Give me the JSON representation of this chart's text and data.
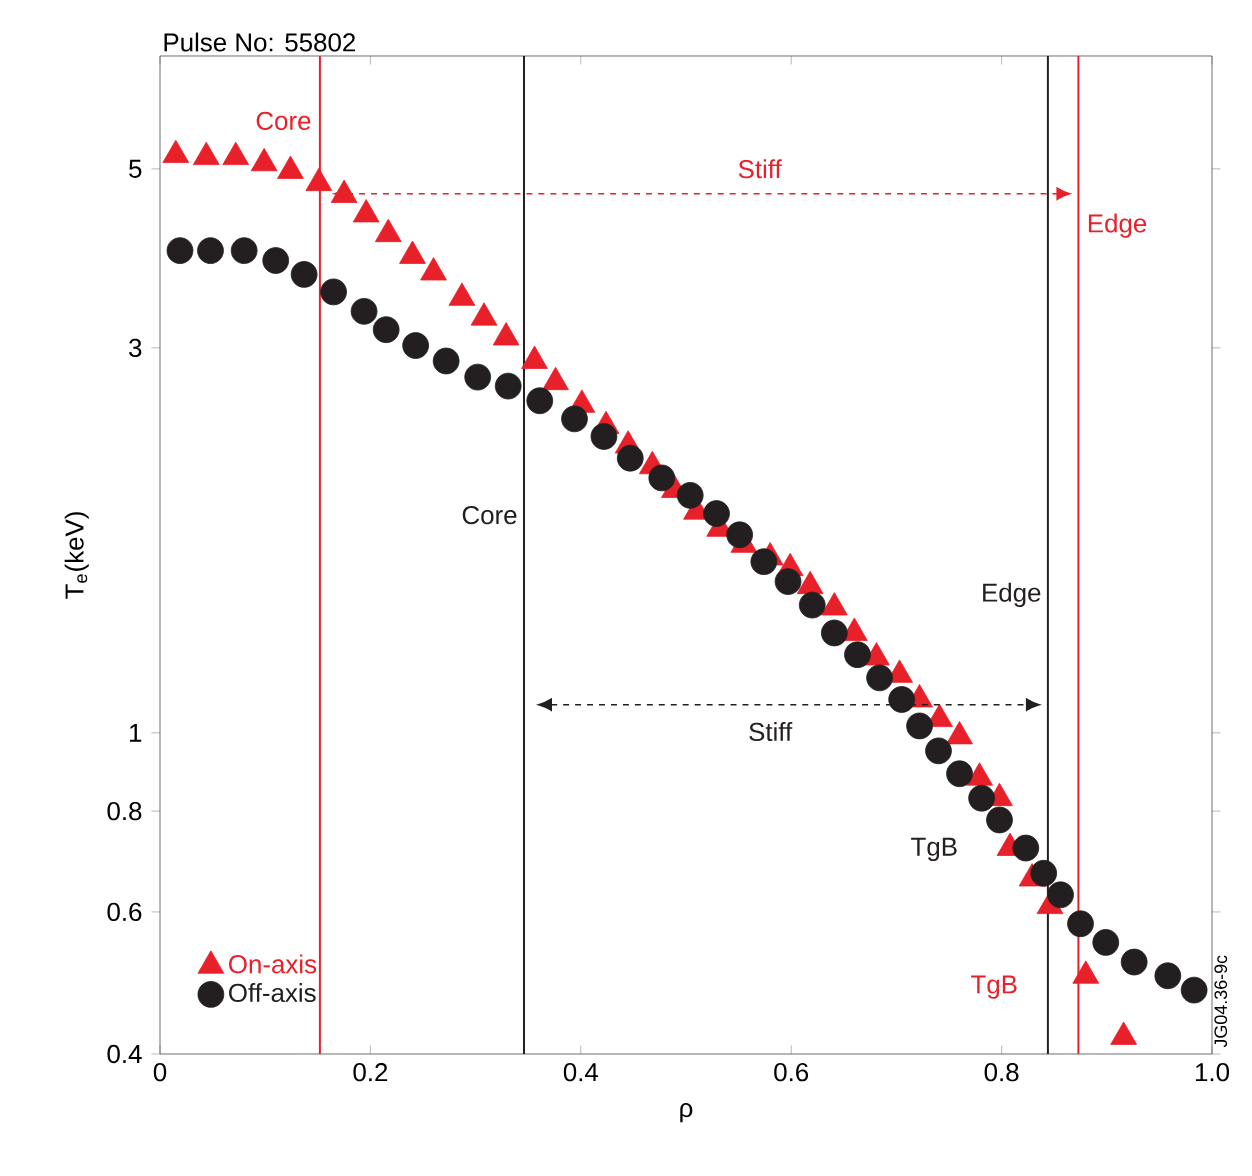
{
  "chart_data": {
    "type": "scatter",
    "title": "Pulse No: 55802",
    "xlabel": "ρ",
    "ylabel": "T$_{e}$(keV)",
    "log": "y",
    "legend": "bottom left",
    "grid": false,
    "xlim": [
      0,
      1
    ],
    "xticks": [
      0,
      0.2,
      0.4,
      0.6,
      0.8,
      {
        "value": 1,
        "label": "1.0"
      }
    ],
    "ylim": [
      0.4,
      6.9
    ],
    "yticks": [
      0.4,
      0.6,
      0.8,
      1,
      3,
      5
    ],
    "series": [
      {
        "name": "On-axis",
        "color": "#e8202a",
        "marker": "triangle",
        "x": [
          0.015,
          0.044,
          0.072,
          0.099,
          0.124,
          0.151,
          0.175,
          0.196,
          0.217,
          0.24,
          0.26,
          0.287,
          0.308,
          0.329,
          0.356,
          0.376,
          0.401,
          0.424,
          0.445,
          0.468,
          0.489,
          0.51,
          0.532,
          0.555,
          0.58,
          0.599,
          0.618,
          0.641,
          0.66,
          0.681,
          0.703,
          0.722,
          0.741,
          0.76,
          0.779,
          0.798,
          0.808,
          0.829,
          0.846,
          0.88,
          0.916
        ],
        "values": [
          5.2,
          5.17,
          5.17,
          5.08,
          4.97,
          4.8,
          4.64,
          4.39,
          4.15,
          3.9,
          3.72,
          3.46,
          3.27,
          3.09,
          2.89,
          2.72,
          2.55,
          2.4,
          2.27,
          2.14,
          2.0,
          1.88,
          1.79,
          1.71,
          1.65,
          1.6,
          1.52,
          1.43,
          1.33,
          1.24,
          1.18,
          1.1,
          1.04,
          0.99,
          0.88,
          0.83,
          0.72,
          0.66,
          0.61,
          0.5,
          0.42
        ]
      },
      {
        "name": "Off-axis",
        "color": "#231f20",
        "marker": "circle",
        "x": [
          0.019,
          0.048,
          0.08,
          0.11,
          0.137,
          0.165,
          0.194,
          0.215,
          0.243,
          0.272,
          0.302,
          0.331,
          0.361,
          0.394,
          0.422,
          0.447,
          0.477,
          0.504,
          0.529,
          0.551,
          0.574,
          0.597,
          0.62,
          0.641,
          0.663,
          0.684,
          0.705,
          0.722,
          0.74,
          0.76,
          0.781,
          0.798,
          0.823,
          0.84,
          0.856,
          0.875,
          0.899,
          0.926,
          0.958,
          0.983
        ],
        "values": [
          3.96,
          3.96,
          3.96,
          3.85,
          3.7,
          3.52,
          3.33,
          3.16,
          3.02,
          2.89,
          2.76,
          2.69,
          2.58,
          2.45,
          2.33,
          2.19,
          2.07,
          1.97,
          1.87,
          1.76,
          1.63,
          1.54,
          1.44,
          1.33,
          1.25,
          1.17,
          1.1,
          1.02,
          0.95,
          0.89,
          0.83,
          0.78,
          0.72,
          0.67,
          0.63,
          0.58,
          0.55,
          0.52,
          0.5,
          0.48
        ]
      }
    ],
    "ref_lines": [
      {
        "axis": "x",
        "value": 0.152,
        "label": "Core",
        "color": "#e8202a"
      },
      {
        "axis": "x",
        "value": 0.873,
        "label": "Edge",
        "color": "#e8202a"
      },
      {
        "axis": "x",
        "value": 0.346,
        "label": "Core",
        "color": "#231f20"
      },
      {
        "axis": "x",
        "value": 0.844,
        "label": "Edge",
        "color": "#231f20"
      }
    ],
    "annotations": [
      "Stiff",
      "Stiff",
      "TgB",
      "TgB",
      "JG04.36-9c"
    ]
  }
}
